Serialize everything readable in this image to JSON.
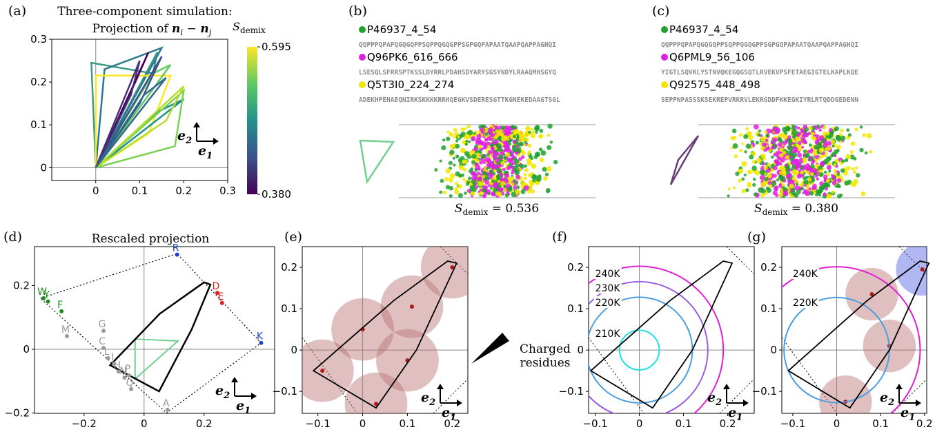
{
  "panels": {
    "a": {
      "label": "(a)",
      "title": "Three-component simulation:",
      "subtitle": "Projection of ",
      "vec": "n",
      "i": "i",
      "minus": " − ",
      "j": "j",
      "xlim": [
        -0.1,
        0.3
      ],
      "ylim": [
        -0.03,
        0.3
      ],
      "xticks": [
        0,
        0.1,
        0.2,
        0.3
      ],
      "yticks": [
        0,
        0.1,
        0.2,
        0.3
      ],
      "lines": [
        {
          "color": "#3b9a8b",
          "points": [
            [
              0,
              0
            ],
            [
              -0.01,
              0.245
            ],
            [
              0.13,
              0.22
            ],
            [
              0.14,
              0.27
            ],
            [
              0,
              0
            ]
          ]
        },
        {
          "color": "#2a788e",
          "points": [
            [
              0,
              0
            ],
            [
              0.02,
              0.23
            ],
            [
              0.15,
              0.28
            ],
            [
              0,
              0
            ]
          ]
        },
        {
          "color": "#fde725",
          "points": [
            [
              0,
              0
            ],
            [
              0.0,
              0.215
            ],
            [
              0.17,
              0.215
            ],
            [
              0.12,
              0.08
            ],
            [
              0,
              0
            ]
          ]
        },
        {
          "color": "#5ec962",
          "points": [
            [
              0,
              0
            ],
            [
              0.13,
              0.22
            ],
            [
              0.17,
              0.24
            ],
            [
              0,
              0
            ]
          ]
        },
        {
          "color": "#440154",
          "points": [
            [
              0,
              0
            ],
            [
              0.09,
              0.2
            ],
            [
              0.12,
              0.27
            ],
            [
              0,
              0
            ]
          ]
        },
        {
          "color": "#472d7b",
          "points": [
            [
              0,
              0
            ],
            [
              0.08,
              0.17
            ],
            [
              0.1,
              0.25
            ],
            [
              0,
              0
            ]
          ]
        },
        {
          "color": "#3b528b",
          "points": [
            [
              0,
              0
            ],
            [
              0.1,
              0.15
            ],
            [
              0.15,
              0.26
            ],
            [
              0,
              0
            ]
          ]
        },
        {
          "color": "#21918c",
          "points": [
            [
              0,
              0
            ],
            [
              0.14,
              0.13
            ],
            [
              0.2,
              0.16
            ],
            [
              0,
              0
            ]
          ]
        },
        {
          "color": "#7ad151",
          "points": [
            [
              0,
              0
            ],
            [
              0.18,
              0.05
            ],
            [
              0.2,
              0.18
            ],
            [
              0,
              0
            ]
          ]
        },
        {
          "color": "#b5de2b",
          "points": [
            [
              0,
              0
            ],
            [
              0.16,
              0.11
            ],
            [
              0.2,
              0.19
            ],
            [
              0,
              0
            ]
          ]
        },
        {
          "color": "#31688e",
          "points": [
            [
              0,
              0
            ],
            [
              0.11,
              0.17
            ],
            [
              0.16,
              0.21
            ],
            [
              0,
              0
            ]
          ]
        }
      ],
      "colorbar": {
        "symbol": "S",
        "sub": "demix",
        "lim": [
          0.38,
          0.595
        ],
        "ticks": [
          0.595,
          {
            "value": 0.38,
            "label": "0.380"
          }
        ]
      }
    },
    "b": {
      "label": "(b)",
      "shape_color": "#6fcf8f",
      "symbol": "S",
      "sub": "demix",
      "value_text": " = 0.536",
      "species": [
        {
          "name": "P46937_4_54",
          "color": "#1fa12f",
          "sequence": "QQPPPQPAPQGQGQPPSQPPQGQGPPSGPGQPAPAATQAAPQAPPAGHQI"
        },
        {
          "name": "Q96PK6_616_666",
          "color": "#e020e0",
          "sequence": "LSESQLSFRRSPTKSSLDYRRLPDAHSDYARYSGSYNDYLRAAQMHSGYQ"
        },
        {
          "name": "Q5T3I0_224_274",
          "color": "#f2e600",
          "sequence": "ADEKHPEHAEQNIRKSKKKKRRHQEGKVSDERESGTTKGNEKEDAAGTSGL"
        }
      ]
    },
    "c": {
      "label": "(c)",
      "shape_color": "#6a3d7a",
      "symbol": "S",
      "sub": "demix",
      "value_text": " = 0.380",
      "species": [
        {
          "name": "P46937_4_54",
          "color": "#1fa12f",
          "sequence": "QQPPPQPAPQGQGQPPSQPPQGQGPPSGPGQPAPAATQAAPQAPPAGHQI"
        },
        {
          "name": "Q6PML9_56_106",
          "color": "#e020e0",
          "sequence": "YIGTLSQVKLYSTNVQKEGQGSQTLRVEKVPSFETAEGIGTELKAPLKQE"
        },
        {
          "name": "Q92575_448_498",
          "color": "#f2e600",
          "sequence": "SEPPNPASSSKSEKREPVRKRVLEKRGDDFKKEGKIYRLRTQDDGEDENN"
        }
      ]
    },
    "d": {
      "label": "(d)",
      "title": "Rescaled projection",
      "xlim": [
        -0.365,
        0.435
      ],
      "ylim": [
        -0.201,
        0.322
      ],
      "xticks": [
        {
          "value": -0.2,
          "label": "−0.2"
        },
        0,
        0.2
      ],
      "yticks": [
        {
          "value": -0.2,
          "label": "−0.2"
        },
        0,
        0.2
      ],
      "frame": [
        [
          -0.345,
          0.16
        ],
        [
          0.11,
          0.3
        ],
        [
          0.39,
          0.02
        ],
        [
          0.075,
          -0.2
        ]
      ],
      "outline": [
        [
          -0.113,
          -0.05
        ],
        [
          0.05,
          -0.132
        ],
        [
          0.159,
          0.063
        ],
        [
          0.221,
          0.203
        ],
        [
          0.2,
          0.21
        ],
        [
          0.053,
          0.112
        ]
      ],
      "triangle": [
        [
          -0.03,
          0.032
        ],
        [
          0.113,
          0.026
        ],
        [
          -0.03,
          -0.093
        ]
      ],
      "triangle_color": "#6fcf8f",
      "points": [
        {
          "label": "R",
          "color": "#1f3fd0",
          "x": 0.11,
          "y": 0.297
        },
        {
          "label": "W",
          "color": "#1a8a1a",
          "x": -0.335,
          "y": 0.16
        },
        {
          "label": "Y",
          "color": "#1a8a1a",
          "x": -0.32,
          "y": 0.15
        },
        {
          "label": "F",
          "color": "#1a8a1a",
          "x": -0.275,
          "y": 0.119
        },
        {
          "label": "D",
          "color": "#e02020",
          "x": 0.244,
          "y": 0.177
        },
        {
          "label": "E",
          "color": "#e02020",
          "x": 0.26,
          "y": 0.145
        },
        {
          "label": "K",
          "color": "#1f3fd0",
          "x": 0.39,
          "y": 0.02
        },
        {
          "label": "M",
          "color": "#999999",
          "x": -0.257,
          "y": 0.041
        },
        {
          "label": "G",
          "color": "#999999",
          "x": -0.135,
          "y": 0.058
        },
        {
          "label": "C",
          "color": "#999999",
          "x": -0.135,
          "y": 0.004
        },
        {
          "label": "L",
          "color": "#999999",
          "x": -0.12,
          "y": -0.028
        },
        {
          "label": "I",
          "color": "#999999",
          "x": -0.1,
          "y": -0.045
        },
        {
          "label": "H",
          "color": "#999999",
          "x": -0.085,
          "y": -0.07
        },
        {
          "label": "N",
          "color": "#999999",
          "x": -0.065,
          "y": -0.089
        },
        {
          "label": "P",
          "color": "#999999",
          "x": -0.05,
          "y": -0.082
        },
        {
          "label": "Q",
          "color": "#999999",
          "x": -0.043,
          "y": -0.125
        },
        {
          "label": "A",
          "color": "#999999",
          "x": 0.078,
          "y": -0.19
        }
      ]
    },
    "e": {
      "label": "(e)",
      "note": [
        "Charged",
        "residues"
      ],
      "xlim": [
        -0.135,
        0.235
      ],
      "ylim": [
        -0.153,
        0.25
      ],
      "xticks": [
        {
          "value": -0.1,
          "label": "−0.1"
        },
        0,
        0.1,
        0.2
      ],
      "yticks": [
        {
          "value": -0.1,
          "label": "−0.1"
        },
        0,
        0.1,
        0.2
      ],
      "outline": [
        [
          -0.11,
          -0.05
        ],
        [
          0.03,
          -0.14
        ],
        [
          0.12,
          0.0
        ],
        [
          0.21,
          0.21
        ],
        [
          0.19,
          0.215
        ],
        [
          0.07,
          0.12
        ]
      ],
      "circles": [
        {
          "color": "#b87070",
          "x": 0.2,
          "y": 0.2,
          "r": 0.07
        },
        {
          "color": "#b87070",
          "x": 0.11,
          "y": 0.105,
          "r": 0.07
        },
        {
          "color": "#b87070",
          "x": 0.0,
          "y": 0.05,
          "r": 0.07
        },
        {
          "color": "#b87070",
          "x": 0.1,
          "y": -0.025,
          "r": 0.07
        },
        {
          "color": "#b87070",
          "x": -0.09,
          "y": -0.05,
          "r": 0.07
        },
        {
          "color": "#b87070",
          "x": 0.03,
          "y": -0.13,
          "r": 0.07
        }
      ]
    },
    "f": {
      "label": "(f)",
      "xlim": [
        -0.115,
        0.26
      ],
      "ylim": [
        -0.153,
        0.25
      ],
      "xticks": [
        {
          "value": -0.1,
          "label": "−0.1"
        },
        0,
        0.1,
        0.2
      ],
      "yticks": [
        {
          "value": -0.1,
          "label": "−0.1"
        },
        0,
        0.1,
        0.2
      ],
      "outline": [
        [
          -0.11,
          -0.05
        ],
        [
          0.03,
          -0.14
        ],
        [
          0.12,
          0.0
        ],
        [
          0.21,
          0.21
        ],
        [
          0.19,
          0.215
        ],
        [
          0.07,
          0.12
        ]
      ],
      "contours": [
        {
          "label": "240K",
          "color": "#e020d0",
          "x": 0,
          "y": 0,
          "r": 0.19
        },
        {
          "label": "230K",
          "color": "#9a5ce0",
          "x": 0,
          "y": 0,
          "r": 0.155
        },
        {
          "label": "220K",
          "color": "#4a9de0",
          "x": 0,
          "y": 0,
          "r": 0.12
        },
        {
          "label": "210K",
          "color": "#20e0e0",
          "x": 0,
          "y": 0,
          "r": 0.045
        }
      ]
    },
    "g": {
      "label": "(g)",
      "xlim": [
        -0.125,
        0.205
      ],
      "ylim": [
        -0.153,
        0.25
      ],
      "xticks": [
        {
          "value": -0.1,
          "label": "−0.1"
        },
        0,
        0.1,
        0.2
      ],
      "yticks": [
        {
          "value": -0.1,
          "label": "−0.1"
        },
        0,
        0.1,
        0.2
      ],
      "outline": [
        [
          -0.11,
          -0.05
        ],
        [
          0.03,
          -0.14
        ],
        [
          0.12,
          0.0
        ],
        [
          0.21,
          0.21
        ],
        [
          0.19,
          0.215
        ],
        [
          0.07,
          0.12
        ]
      ],
      "circles": [
        {
          "color": "#b87070",
          "x": 0.08,
          "y": 0.135,
          "r": 0.06
        },
        {
          "color": "#b87070",
          "x": 0.12,
          "y": 0.01,
          "r": 0.06
        },
        {
          "color": "#b87070",
          "x": 0.02,
          "y": -0.125,
          "r": 0.06
        },
        {
          "color": "#5060e0",
          "x": 0.195,
          "y": 0.195,
          "r": 0.06
        }
      ],
      "contours": [
        {
          "label": "240K",
          "color": "#e020d0",
          "x": 0,
          "y": 0,
          "r": 0.19
        },
        {
          "label": "220K",
          "color": "#4a9de0",
          "x": 0,
          "y": 0,
          "r": 0.12
        }
      ]
    }
  },
  "basis": {
    "e": "e",
    "one": "1",
    "two": "2"
  }
}
